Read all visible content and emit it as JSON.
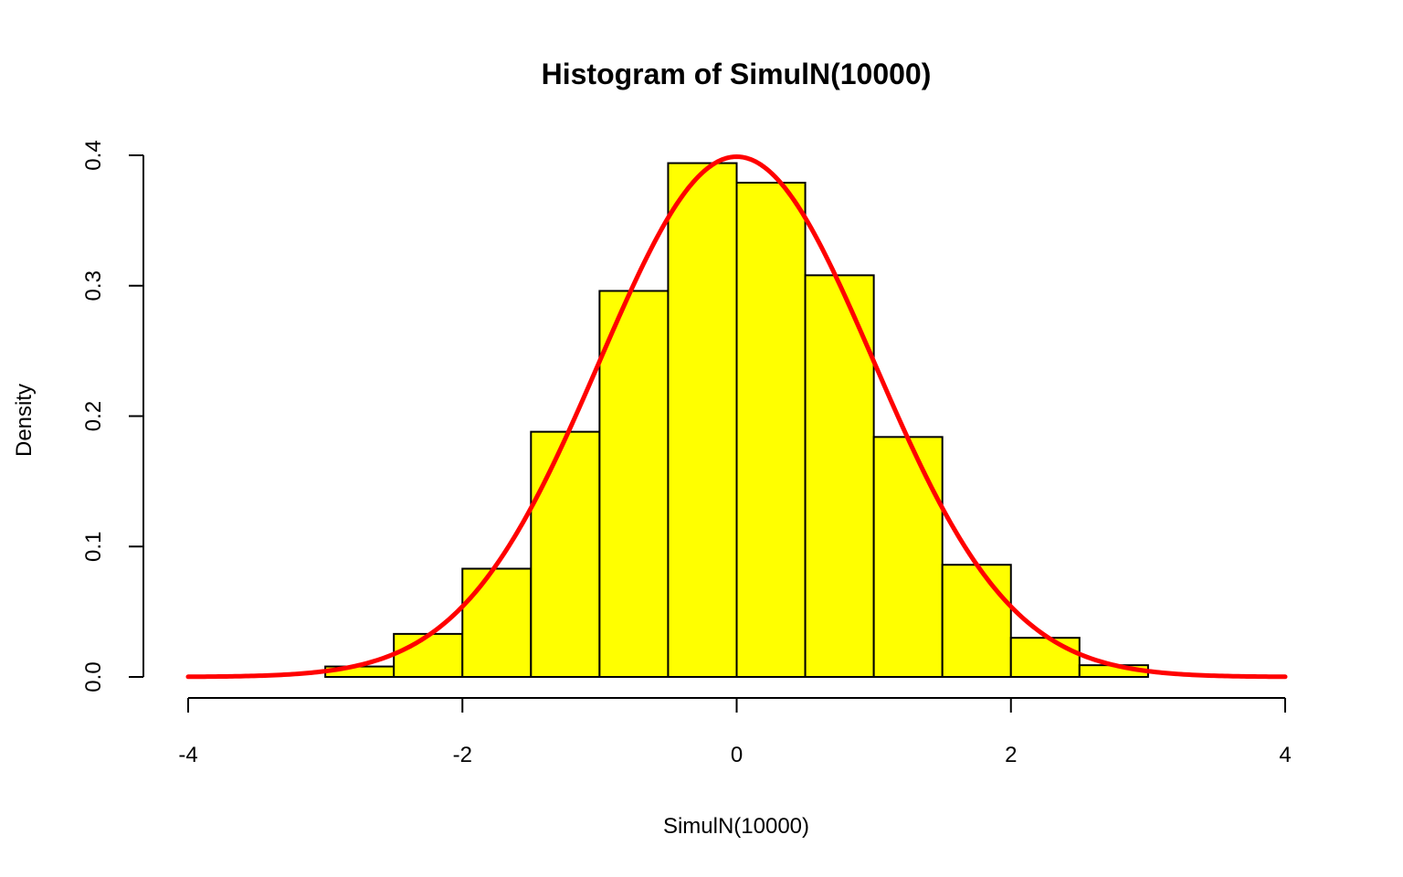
{
  "chart_data": {
    "type": "bar",
    "subtype": "histogram-with-density-curve",
    "title": "Histogram of SimulN(10000)",
    "xlabel": "SimulN(10000)",
    "ylabel": "Density",
    "xlim": [
      -4,
      4
    ],
    "ylim": [
      0,
      0.4
    ],
    "x_ticks": [
      "-4",
      "-2",
      "0",
      "2",
      "4"
    ],
    "y_ticks": [
      "0.0",
      "0.1",
      "0.2",
      "0.3",
      "0.4"
    ],
    "grid": false,
    "bins": [
      {
        "from": -3.0,
        "to": -2.5,
        "density": 0.008
      },
      {
        "from": -2.5,
        "to": -2.0,
        "density": 0.033
      },
      {
        "from": -2.0,
        "to": -1.5,
        "density": 0.083
      },
      {
        "from": -1.5,
        "to": -1.0,
        "density": 0.188
      },
      {
        "from": -1.0,
        "to": -0.5,
        "density": 0.296
      },
      {
        "from": -0.5,
        "to": 0.0,
        "density": 0.394
      },
      {
        "from": 0.0,
        "to": 0.5,
        "density": 0.379
      },
      {
        "from": 0.5,
        "to": 1.0,
        "density": 0.308
      },
      {
        "from": 1.0,
        "to": 1.5,
        "density": 0.184
      },
      {
        "from": 1.5,
        "to": 2.0,
        "density": 0.086
      },
      {
        "from": 2.0,
        "to": 2.5,
        "density": 0.03
      },
      {
        "from": 2.5,
        "to": 3.0,
        "density": 0.009
      }
    ],
    "curve": {
      "type": "normal-density",
      "mean": 0,
      "sd": 1,
      "x_range": [
        -4,
        4
      ]
    },
    "colors": {
      "bar_fill": "#ffff00",
      "bar_stroke": "#000000",
      "curve": "#ff0000"
    }
  }
}
